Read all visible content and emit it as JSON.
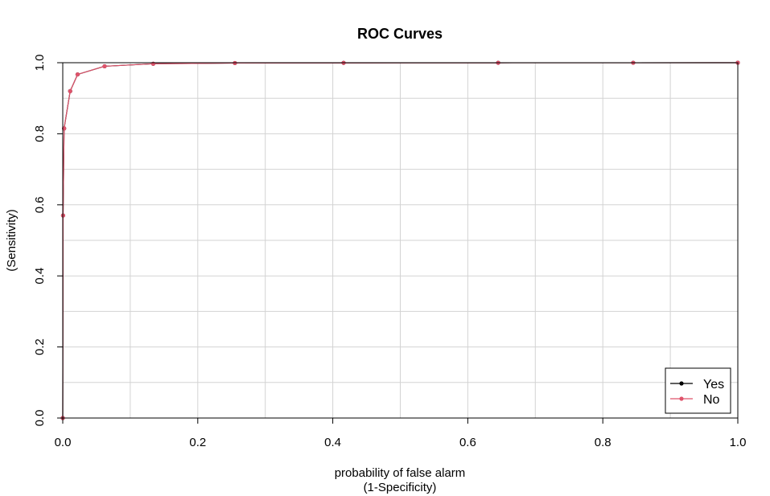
{
  "chart_data": {
    "type": "line",
    "title": "ROC Curves",
    "xlabel": [
      "probability of false alarm",
      "(1-Specificity)"
    ],
    "ylabel": [
      "",
      "(Sensitivity)"
    ],
    "xlim": [
      0,
      1
    ],
    "ylim": [
      0,
      1
    ],
    "x_ticks": [
      "0.0",
      "0.2",
      "0.4",
      "0.6",
      "0.8",
      "1.0"
    ],
    "y_ticks": [
      "0.0",
      "0.2",
      "0.4",
      "0.6",
      "0.8",
      "1.0"
    ],
    "grid": true,
    "legend_position": "bottom-right",
    "series": [
      {
        "name": "Yes",
        "color": "#000000",
        "x": [
          0,
          0.0005,
          0.002,
          0.011,
          0.022,
          0.062,
          0.134,
          0.255,
          0.416,
          0.645,
          0.845,
          1.0
        ],
        "y": [
          0,
          0.57,
          0.815,
          0.92,
          0.967,
          0.99,
          0.997,
          0.999,
          0.9995,
          0.9998,
          0.9999,
          1.0
        ]
      },
      {
        "name": "No",
        "color": "#DF536B",
        "x": [
          0,
          0.0005,
          0.002,
          0.011,
          0.022,
          0.062,
          0.134,
          0.255,
          0.416,
          0.645,
          0.845,
          1.0
        ],
        "y": [
          0,
          0.57,
          0.815,
          0.92,
          0.967,
          0.99,
          0.997,
          0.999,
          0.9995,
          0.9998,
          0.9999,
          1.0
        ]
      }
    ]
  }
}
